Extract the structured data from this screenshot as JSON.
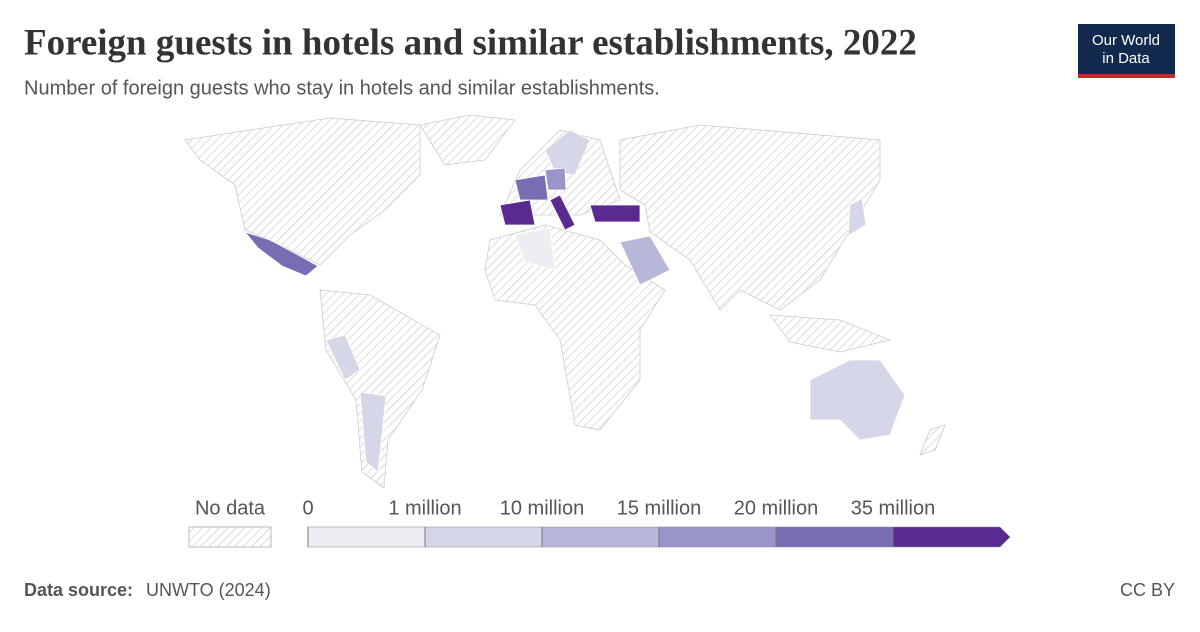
{
  "header": {
    "title": "Foreign guests in hotels and similar establishments, 2022",
    "subtitle": "Number of foreign guests who stay in hotels and similar establishments."
  },
  "logo": {
    "line1": "Our World",
    "line2": "in Data"
  },
  "legend": {
    "no_data": "No data",
    "ticks": [
      0,
      {
        "value": 1000000,
        "label": "1 million"
      },
      {
        "value": 10000000,
        "label": "10 million"
      },
      {
        "value": 15000000,
        "label": "15 million"
      },
      {
        "value": 20000000,
        "label": "20 million"
      },
      {
        "value": 35000000,
        "label": "35 million"
      }
    ],
    "colors": [
      "#ededf4",
      "#d6d6e9",
      "#b7b7da",
      "#9a95c8",
      "#776db3",
      "#5a2a91"
    ]
  },
  "footer": {
    "source_label": "Data source:",
    "source": "UNWTO (2024)",
    "license": "CC BY"
  }
}
